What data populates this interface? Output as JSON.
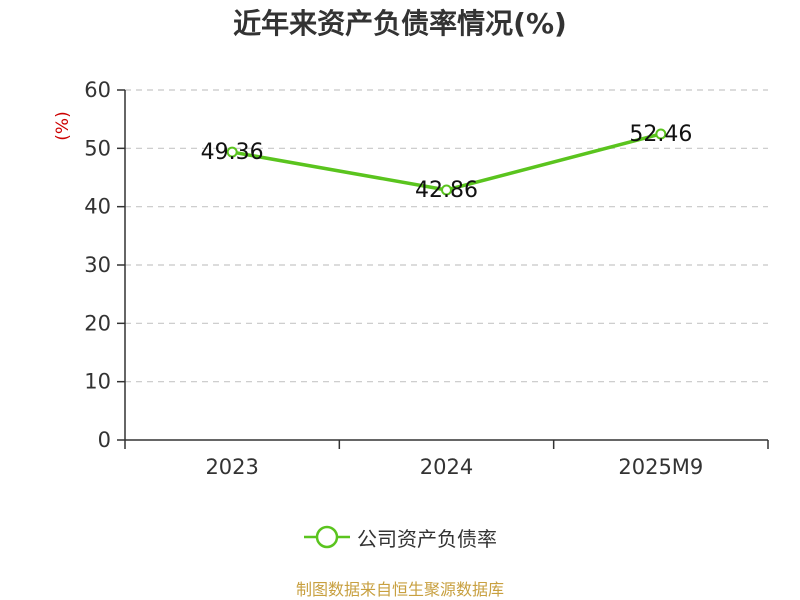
{
  "chart_data": {
    "type": "line",
    "title": "近年来资产负债率情况(%)",
    "ylabel": "(%)",
    "categories": [
      "2023",
      "2024",
      "2025M9"
    ],
    "series": [
      {
        "name": "公司资产负债率",
        "values": [
          49.36,
          42.86,
          52.46
        ],
        "color": "#5ac41e"
      }
    ],
    "ylim": [
      0,
      60
    ],
    "yticks": [
      0,
      10,
      20,
      30,
      40,
      50,
      60
    ],
    "grid": true,
    "legend_position": "bottom"
  },
  "colors": {
    "axis": "#333333",
    "grid": "#c8c8c8",
    "ylabel": "#cc0000",
    "source": "#c8a040"
  },
  "footer": {
    "source": "制图数据来自恒生聚源数据库"
  }
}
